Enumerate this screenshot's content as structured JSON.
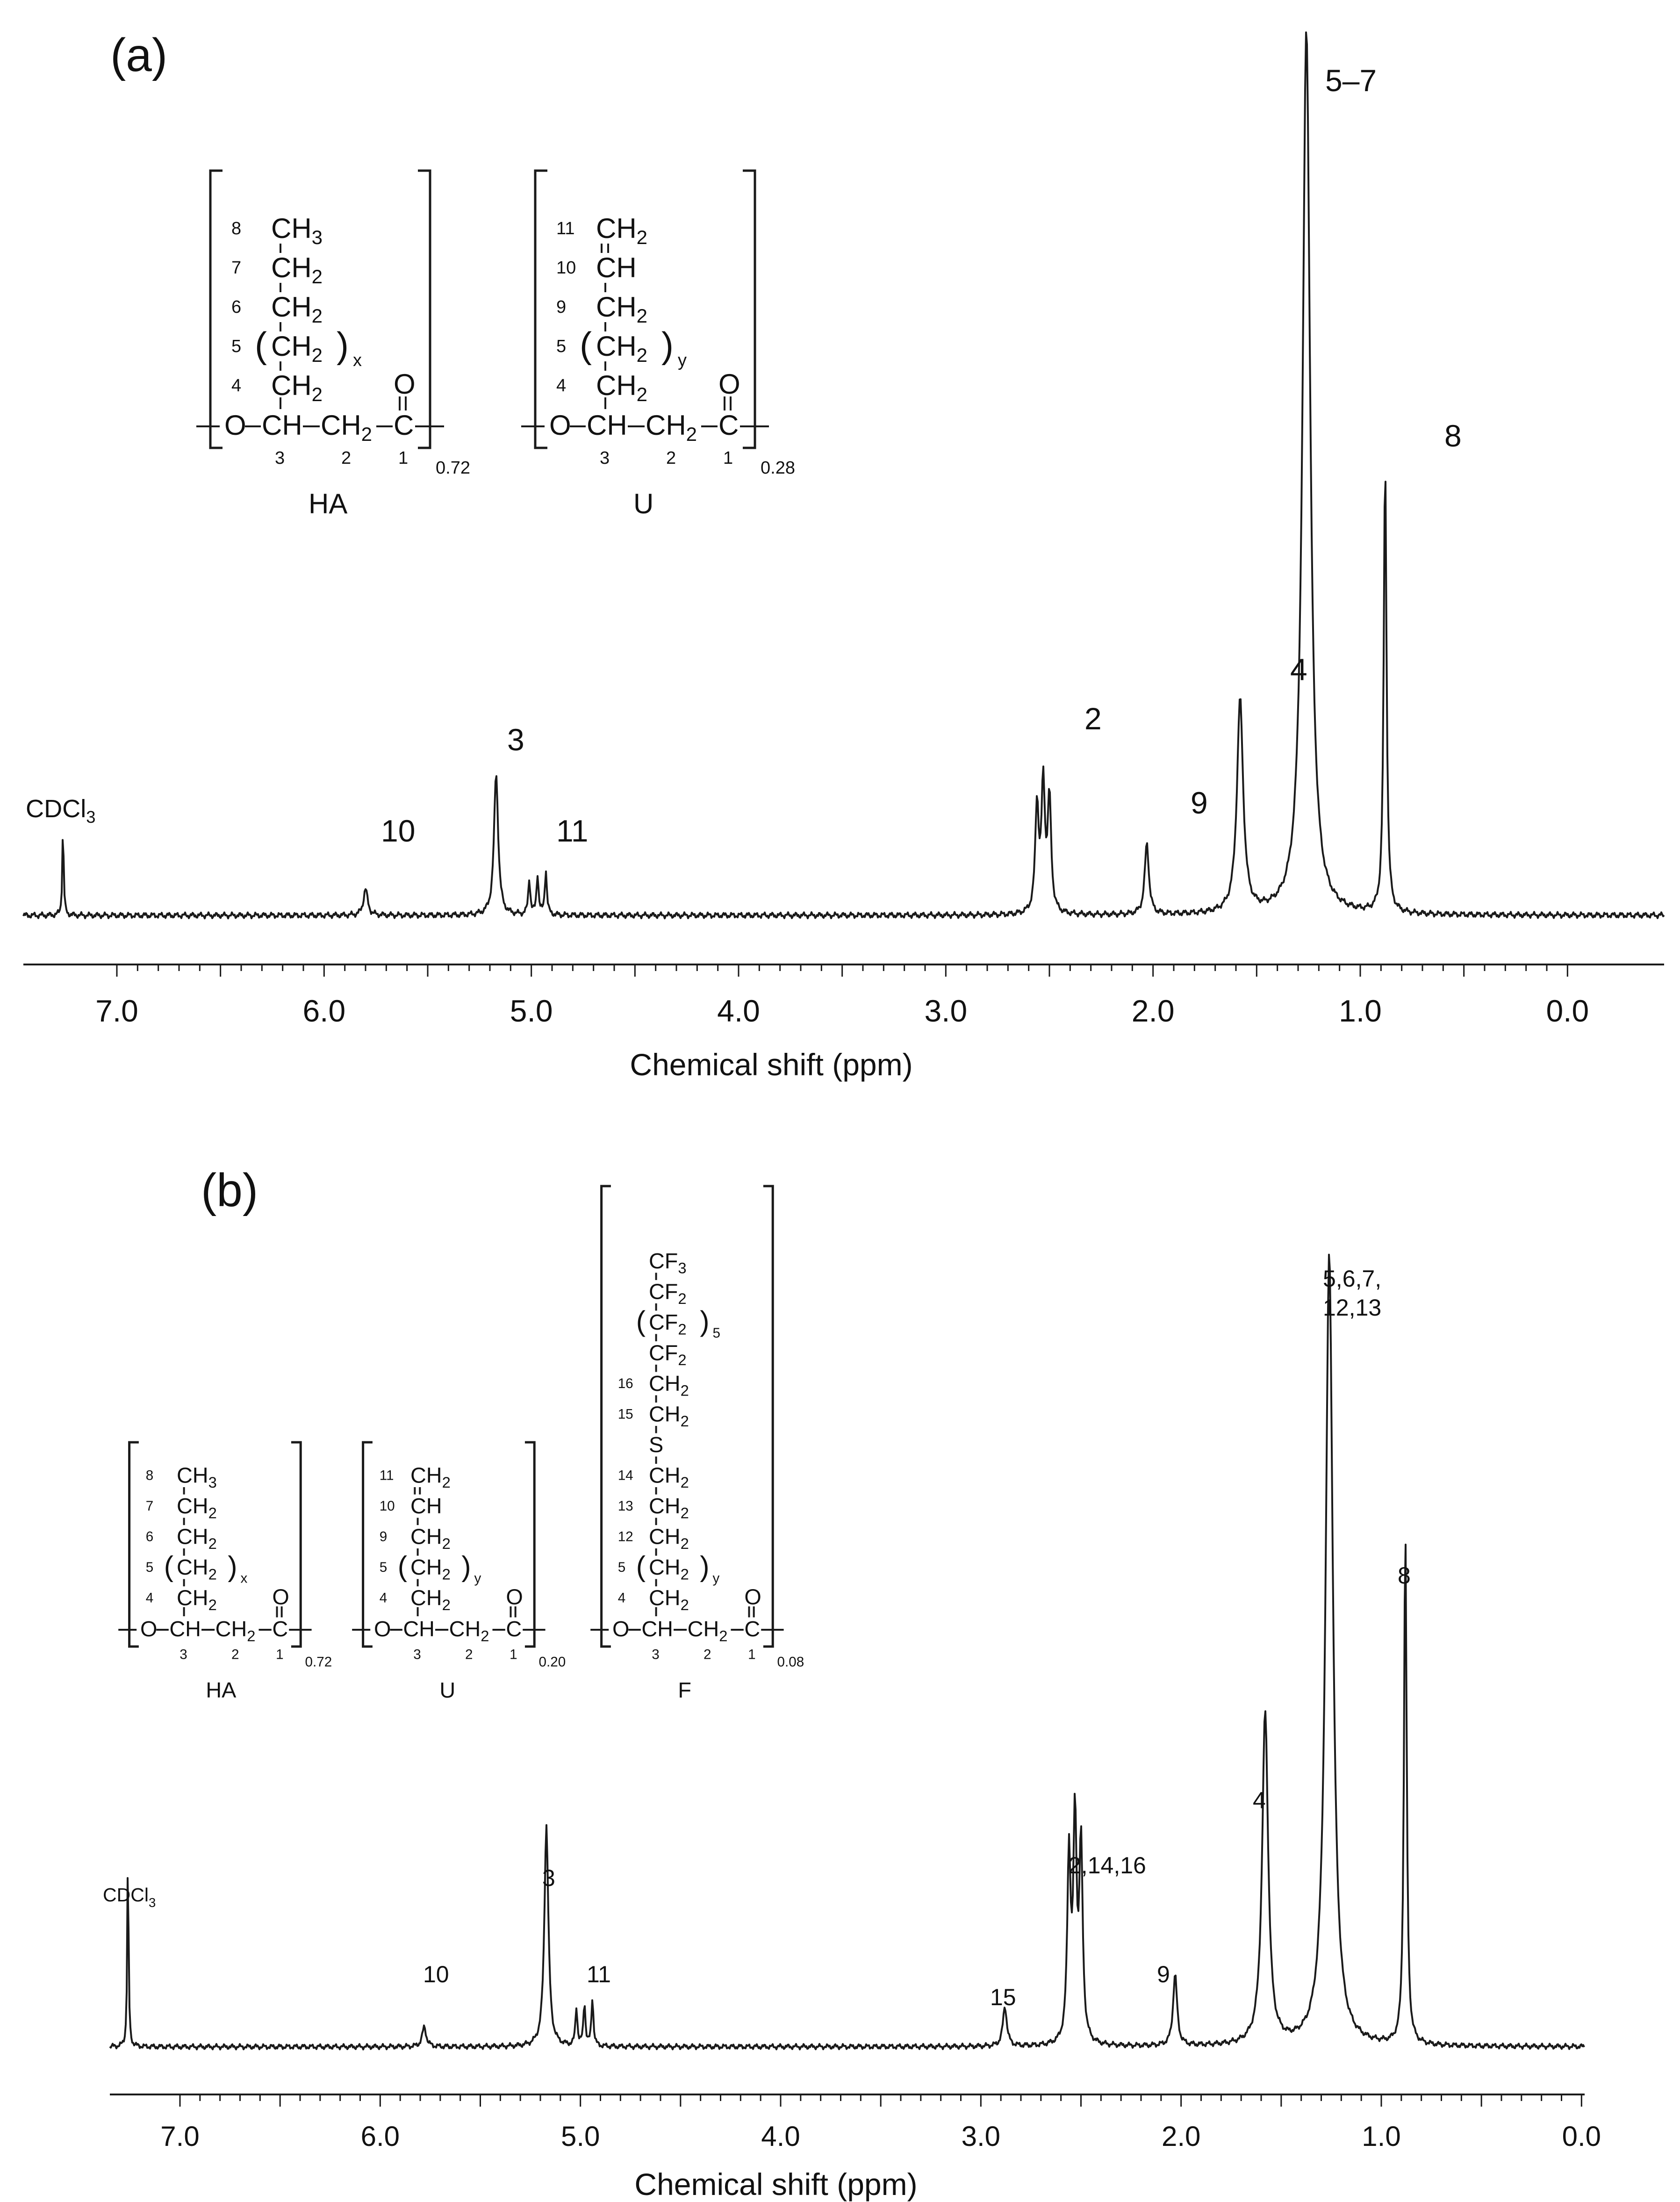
{
  "chart_data": [
    {
      "type": "line",
      "panel_label": "(a)",
      "xlabel": "Chemical shift (ppm)",
      "ylabel": "",
      "xlim": [
        7.4,
        -0.05
      ],
      "x_reversed": true,
      "xticks": [
        "7.0",
        "6.0",
        "5.0",
        "4.0",
        "3.0",
        "2.0",
        "1.0",
        "0.0"
      ],
      "peaks": [
        {
          "label": "CDCl3",
          "x": 7.26,
          "y": 0.1
        },
        {
          "label": "10",
          "x": 5.8,
          "y": 0.03
        },
        {
          "label": "3",
          "x": 5.17,
          "y": 0.16
        },
        {
          "label": "11",
          "x": 4.97,
          "y": 0.05
        },
        {
          "label": "2",
          "x": 2.53,
          "y": 0.17
        },
        {
          "label": "9",
          "x": 2.03,
          "y": 0.08
        },
        {
          "label": "4",
          "x": 1.58,
          "y": 0.24
        },
        {
          "label": "5–7",
          "x": 1.26,
          "y": 1.0
        },
        {
          "label": "8",
          "x": 0.88,
          "y": 0.51
        }
      ],
      "labels": {
        "cdcl3_main": "CDCl",
        "cdcl3_sub": "3"
      },
      "structure": {
        "units": [
          {
            "name": "HA",
            "fraction": "0.72",
            "subscript": "x",
            "side_chain": [
              {
                "num": "8",
                "group": "CH",
                "sub": "3"
              },
              {
                "num": "7",
                "group": "CH",
                "sub": "2"
              },
              {
                "num": "6",
                "group": "CH",
                "sub": "2"
              },
              {
                "num": "5",
                "group": "CH",
                "sub": "2"
              },
              {
                "num": "4",
                "group": "CH",
                "sub": "2"
              }
            ]
          },
          {
            "name": "U",
            "fraction": "0.28",
            "subscript": "y",
            "side_chain": [
              {
                "num": "11",
                "group": "CH",
                "sub": "2"
              },
              {
                "num": "10",
                "group": "CH",
                "sub": ""
              },
              {
                "num": "9",
                "group": "CH",
                "sub": "2"
              },
              {
                "num": "5",
                "group": "CH",
                "sub": "2"
              },
              {
                "num": "4",
                "group": "CH",
                "sub": "2"
              }
            ]
          }
        ]
      }
    },
    {
      "type": "line",
      "panel_label": "(b)",
      "xlabel": "Chemical shift (ppm)",
      "ylabel": "",
      "xlim": [
        7.4,
        -0.15
      ],
      "x_reversed": true,
      "xticks": [
        "7.0",
        "6.0",
        "5.0",
        "4.0",
        "3.0",
        "2.0",
        "1.0",
        "0.0"
      ],
      "peaks": [
        {
          "label": "CDCl3",
          "x": 7.26,
          "y": 0.24
        },
        {
          "label": "10",
          "x": 5.78,
          "y": 0.025
        },
        {
          "label": "3",
          "x": 5.17,
          "y": 0.28
        },
        {
          "label": "11",
          "x": 4.98,
          "y": 0.06
        },
        {
          "label": "15",
          "x": 2.88,
          "y": 0.05
        },
        {
          "label": "2,14,16",
          "x": 2.53,
          "y": 0.33
        },
        {
          "label": "9",
          "x": 2.03,
          "y": 0.09
        },
        {
          "label": "4",
          "x": 1.58,
          "y": 0.42
        },
        {
          "label": "5,6,7,\n12,13",
          "x": 1.26,
          "y": 1.0
        },
        {
          "label": "8",
          "x": 0.88,
          "y": 0.65
        }
      ],
      "labels": {
        "cdcl3_main": "CDCl",
        "cdcl3_sub": "3",
        "peak_567_line1": "5,6,7,",
        "peak_567_line2": "12,13"
      },
      "structure": {
        "units": [
          {
            "name": "HA",
            "fraction": "0.72",
            "subscript": "x"
          },
          {
            "name": "U",
            "fraction": "0.20",
            "subscript": "y"
          },
          {
            "name": "F",
            "fraction": "0.08",
            "subscript": "y",
            "fluoro_chain": [
              {
                "group": "CF",
                "sub": "3"
              },
              {
                "group": "CF",
                "sub": "2"
              },
              {
                "group": "CF",
                "sub": "2",
                "repeat": "5"
              },
              {
                "group": "CF",
                "sub": "2"
              },
              {
                "num": "16",
                "group": "CH",
                "sub": "2"
              },
              {
                "num": "15",
                "group": "CH",
                "sub": "2"
              },
              {
                "group": "S",
                "sub": ""
              },
              {
                "num": "14",
                "group": "CH",
                "sub": "2"
              },
              {
                "num": "13",
                "group": "CH",
                "sub": "2"
              },
              {
                "num": "12",
                "group": "CH",
                "sub": "2"
              },
              {
                "num": "5",
                "group": "CH",
                "sub": "2"
              },
              {
                "num": "4",
                "group": "CH",
                "sub": "2"
              }
            ]
          }
        ]
      }
    }
  ],
  "backbone": {
    "o": "O",
    "ch": "CH",
    "ch2": "CH",
    "sub2": "2",
    "c": "C",
    "carbonyl": "O",
    "num3": "3",
    "num2": "2",
    "num1": "1"
  }
}
